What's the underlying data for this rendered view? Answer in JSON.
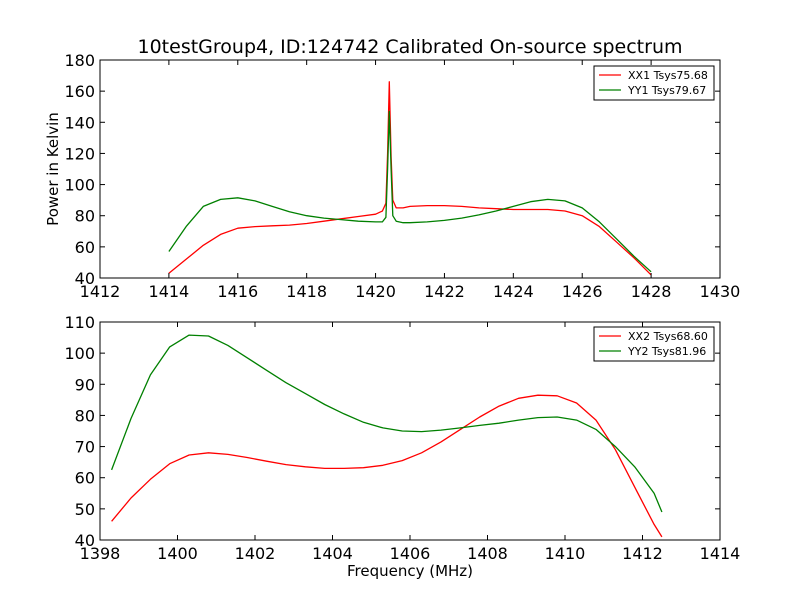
{
  "figure": {
    "title": "10testGroup4, ID:124742 Calibrated On-source spectrum"
  },
  "chart_data": [
    {
      "type": "line",
      "title": "10testGroup4, ID:124742 Calibrated On-source spectrum",
      "xlabel": "",
      "ylabel": "Power in Kelvin",
      "xlim": [
        1412,
        1430
      ],
      "ylim": [
        40,
        180
      ],
      "xticks": [
        "1412",
        "1414",
        "1416",
        "1418",
        "1420",
        "1422",
        "1424",
        "1426",
        "1428",
        "1430"
      ],
      "yticks": [
        "40",
        "60",
        "80",
        "100",
        "120",
        "140",
        "160",
        "180"
      ],
      "grid": false,
      "legend": "top-right",
      "series": [
        {
          "name": "XX1 Tsys75.68",
          "color": "#ff0000",
          "x": [
            1414.0,
            1414.5,
            1415.0,
            1415.5,
            1416.0,
            1416.5,
            1417.0,
            1417.5,
            1418.0,
            1418.5,
            1419.0,
            1419.5,
            1420.0,
            1420.2,
            1420.3,
            1420.35,
            1420.4,
            1420.45,
            1420.5,
            1420.6,
            1420.8,
            1421.0,
            1421.5,
            1422.0,
            1422.5,
            1423.0,
            1423.5,
            1424.0,
            1424.5,
            1425.0,
            1425.5,
            1426.0,
            1426.5,
            1427.0,
            1427.5,
            1428.0
          ],
          "y": [
            43,
            52,
            61,
            68,
            72,
            73,
            73.5,
            74,
            75,
            76.5,
            78,
            79.5,
            81,
            83,
            88,
            120,
            166,
            118,
            90,
            85,
            85,
            86,
            86.5,
            86.5,
            86,
            85,
            84.5,
            84,
            84,
            84,
            83,
            80,
            73,
            63,
            53,
            42
          ]
        },
        {
          "name": "YY1 Tsys79.67",
          "color": "#008000",
          "x": [
            1414.0,
            1414.5,
            1415.0,
            1415.5,
            1416.0,
            1416.5,
            1417.0,
            1417.5,
            1418.0,
            1418.5,
            1419.0,
            1419.5,
            1420.0,
            1420.2,
            1420.3,
            1420.35,
            1420.4,
            1420.45,
            1420.5,
            1420.6,
            1420.8,
            1421.0,
            1421.5,
            1422.0,
            1422.5,
            1423.0,
            1423.5,
            1424.0,
            1424.5,
            1425.0,
            1425.5,
            1426.0,
            1426.5,
            1427.0,
            1427.5,
            1428.0
          ],
          "y": [
            57,
            73,
            86,
            90.5,
            91.5,
            89.5,
            86,
            82.5,
            80,
            78.5,
            77.5,
            76.5,
            76,
            76,
            79,
            110,
            147,
            110,
            80,
            76.5,
            75.5,
            75.5,
            76,
            77,
            78.5,
            80.5,
            83,
            86,
            89,
            90.5,
            89.5,
            85,
            76,
            65,
            54,
            44
          ]
        }
      ]
    },
    {
      "type": "line",
      "title": "",
      "xlabel": "Frequency (MHz)",
      "ylabel": "",
      "xlim": [
        1398,
        1414
      ],
      "ylim": [
        40,
        110
      ],
      "xticks": [
        "1398",
        "1400",
        "1402",
        "1404",
        "1406",
        "1408",
        "1410",
        "1412",
        "1414"
      ],
      "yticks": [
        "40",
        "50",
        "60",
        "70",
        "80",
        "90",
        "100",
        "110"
      ],
      "grid": false,
      "legend": "top-right",
      "series": [
        {
          "name": "XX2 Tsys68.60",
          "color": "#ff0000",
          "x": [
            1398.3,
            1398.8,
            1399.3,
            1399.8,
            1400.3,
            1400.8,
            1401.3,
            1401.8,
            1402.3,
            1402.8,
            1403.3,
            1403.8,
            1404.3,
            1404.8,
            1405.3,
            1405.8,
            1406.3,
            1406.8,
            1407.3,
            1407.8,
            1408.3,
            1408.8,
            1409.3,
            1409.8,
            1410.3,
            1410.8,
            1411.3,
            1411.8,
            1412.3,
            1412.5
          ],
          "y": [
            46,
            53.5,
            59.5,
            64.5,
            67.3,
            68,
            67.5,
            66.5,
            65.3,
            64.2,
            63.5,
            63,
            63,
            63.2,
            64,
            65.5,
            68,
            71.5,
            75.5,
            79.5,
            83,
            85.5,
            86.5,
            86.3,
            84,
            78.5,
            69,
            57,
            45,
            41
          ]
        },
        {
          "name": "YY2 Tsys81.96",
          "color": "#008000",
          "x": [
            1398.3,
            1398.8,
            1399.3,
            1399.8,
            1400.3,
            1400.8,
            1401.3,
            1401.8,
            1402.3,
            1402.8,
            1403.3,
            1403.8,
            1404.3,
            1404.8,
            1405.3,
            1405.8,
            1406.3,
            1406.8,
            1407.3,
            1407.8,
            1408.3,
            1408.8,
            1409.3,
            1409.8,
            1410.3,
            1410.8,
            1411.3,
            1411.8,
            1412.3,
            1412.5
          ],
          "y": [
            62.5,
            79,
            93,
            102,
            105.8,
            105.5,
            102.5,
            98.5,
            94.5,
            90.5,
            87,
            83.5,
            80.5,
            77.8,
            76,
            75,
            74.8,
            75.3,
            76,
            76.8,
            77.5,
            78.5,
            79.3,
            79.5,
            78.5,
            75.5,
            70,
            63.5,
            55,
            49
          ]
        }
      ]
    }
  ]
}
